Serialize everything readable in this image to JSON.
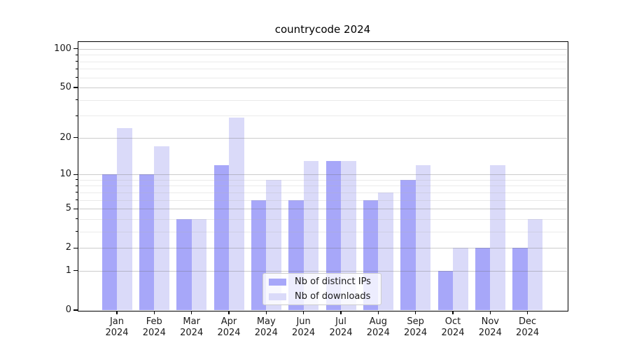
{
  "figure": {
    "title": "countrycode 2024"
  },
  "colors": {
    "bar_ips": "#a7a7f9",
    "bar_downloads": "#dadaf9",
    "grid_major": "rgba(110,110,110,0.35)",
    "grid_minor": "rgba(180,180,180,0.28)",
    "axis": "#000000",
    "text": "#1a1a1a",
    "legend_bg": "rgba(255,255,255,0.8)",
    "legend_border": "#cccccc"
  },
  "chart_data": {
    "type": "bar",
    "title": "countrycode 2024",
    "yscale": "log1p",
    "grid": true,
    "legend_position": "lower center",
    "months": [
      "Jan",
      "Feb",
      "Mar",
      "Apr",
      "May",
      "Jun",
      "Jul",
      "Aug",
      "Sep",
      "Oct",
      "Nov",
      "Dec"
    ],
    "year": "2024",
    "categories": [
      "Jan 2024",
      "Feb 2024",
      "Mar 2024",
      "Apr 2024",
      "May 2024",
      "Jun 2024",
      "Jul 2024",
      "Aug 2024",
      "Sep 2024",
      "Oct 2024",
      "Nov 2024",
      "Dec 2024"
    ],
    "yticks": [
      0,
      1,
      2,
      5,
      10,
      20,
      50,
      100
    ],
    "minor_yticks": [
      3,
      4,
      6,
      7,
      8,
      9,
      30,
      40,
      60,
      70,
      80,
      90
    ],
    "ylim": [
      0,
      113
    ],
    "xlabel": "",
    "ylabel": "",
    "series": [
      {
        "name": "Nb of distinct IPs",
        "values": [
          10,
          10,
          4,
          12,
          6,
          6,
          13,
          6,
          9,
          1,
          2,
          2
        ]
      },
      {
        "name": "Nb of downloads",
        "values": [
          24,
          17,
          4,
          29,
          9,
          13,
          13,
          7,
          12,
          2,
          12,
          4
        ]
      }
    ]
  }
}
